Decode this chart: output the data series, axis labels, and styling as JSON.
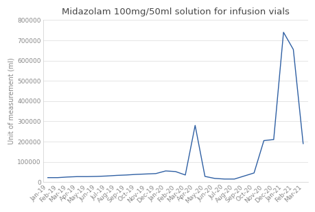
{
  "title": "Midazolam 100mg/50ml solution for infusion vials",
  "ylabel": "Unit of measurement (ml)",
  "x_labels": [
    "Jan-19",
    "Feb-19",
    "Mar-19",
    "Apr-19",
    "May-19",
    "Jun-19",
    "Jul-19",
    "Aug-19",
    "Sep-19",
    "Oct-19",
    "Nov-19",
    "Dec-19",
    "Jan-20",
    "Feb-20",
    "Mar-20",
    "Apr-20",
    "May-20",
    "Jun-20",
    "Jul-20",
    "Aug-20",
    "Sep-20",
    "Oct-20",
    "Nov-20",
    "Dec-20",
    "Jan-21",
    "Feb-21",
    "Mar-21"
  ],
  "values": [
    22000,
    22000,
    25000,
    27000,
    27000,
    28000,
    30000,
    33000,
    35000,
    38000,
    40000,
    42000,
    55000,
    52000,
    35000,
    280000,
    28000,
    18000,
    15000,
    15000,
    30000,
    45000,
    205000,
    210000,
    740000,
    655000,
    190000
  ],
  "line_color": "#2E5FA3",
  "bg_color": "#ffffff",
  "plot_bg_color": "#ffffff",
  "grid_color": "#e0e0e0",
  "ylim": [
    0,
    800000
  ],
  "yticks": [
    0,
    100000,
    200000,
    300000,
    400000,
    500000,
    600000,
    700000,
    800000
  ],
  "title_fontsize": 9.5,
  "label_fontsize": 7,
  "tick_fontsize": 6.5
}
